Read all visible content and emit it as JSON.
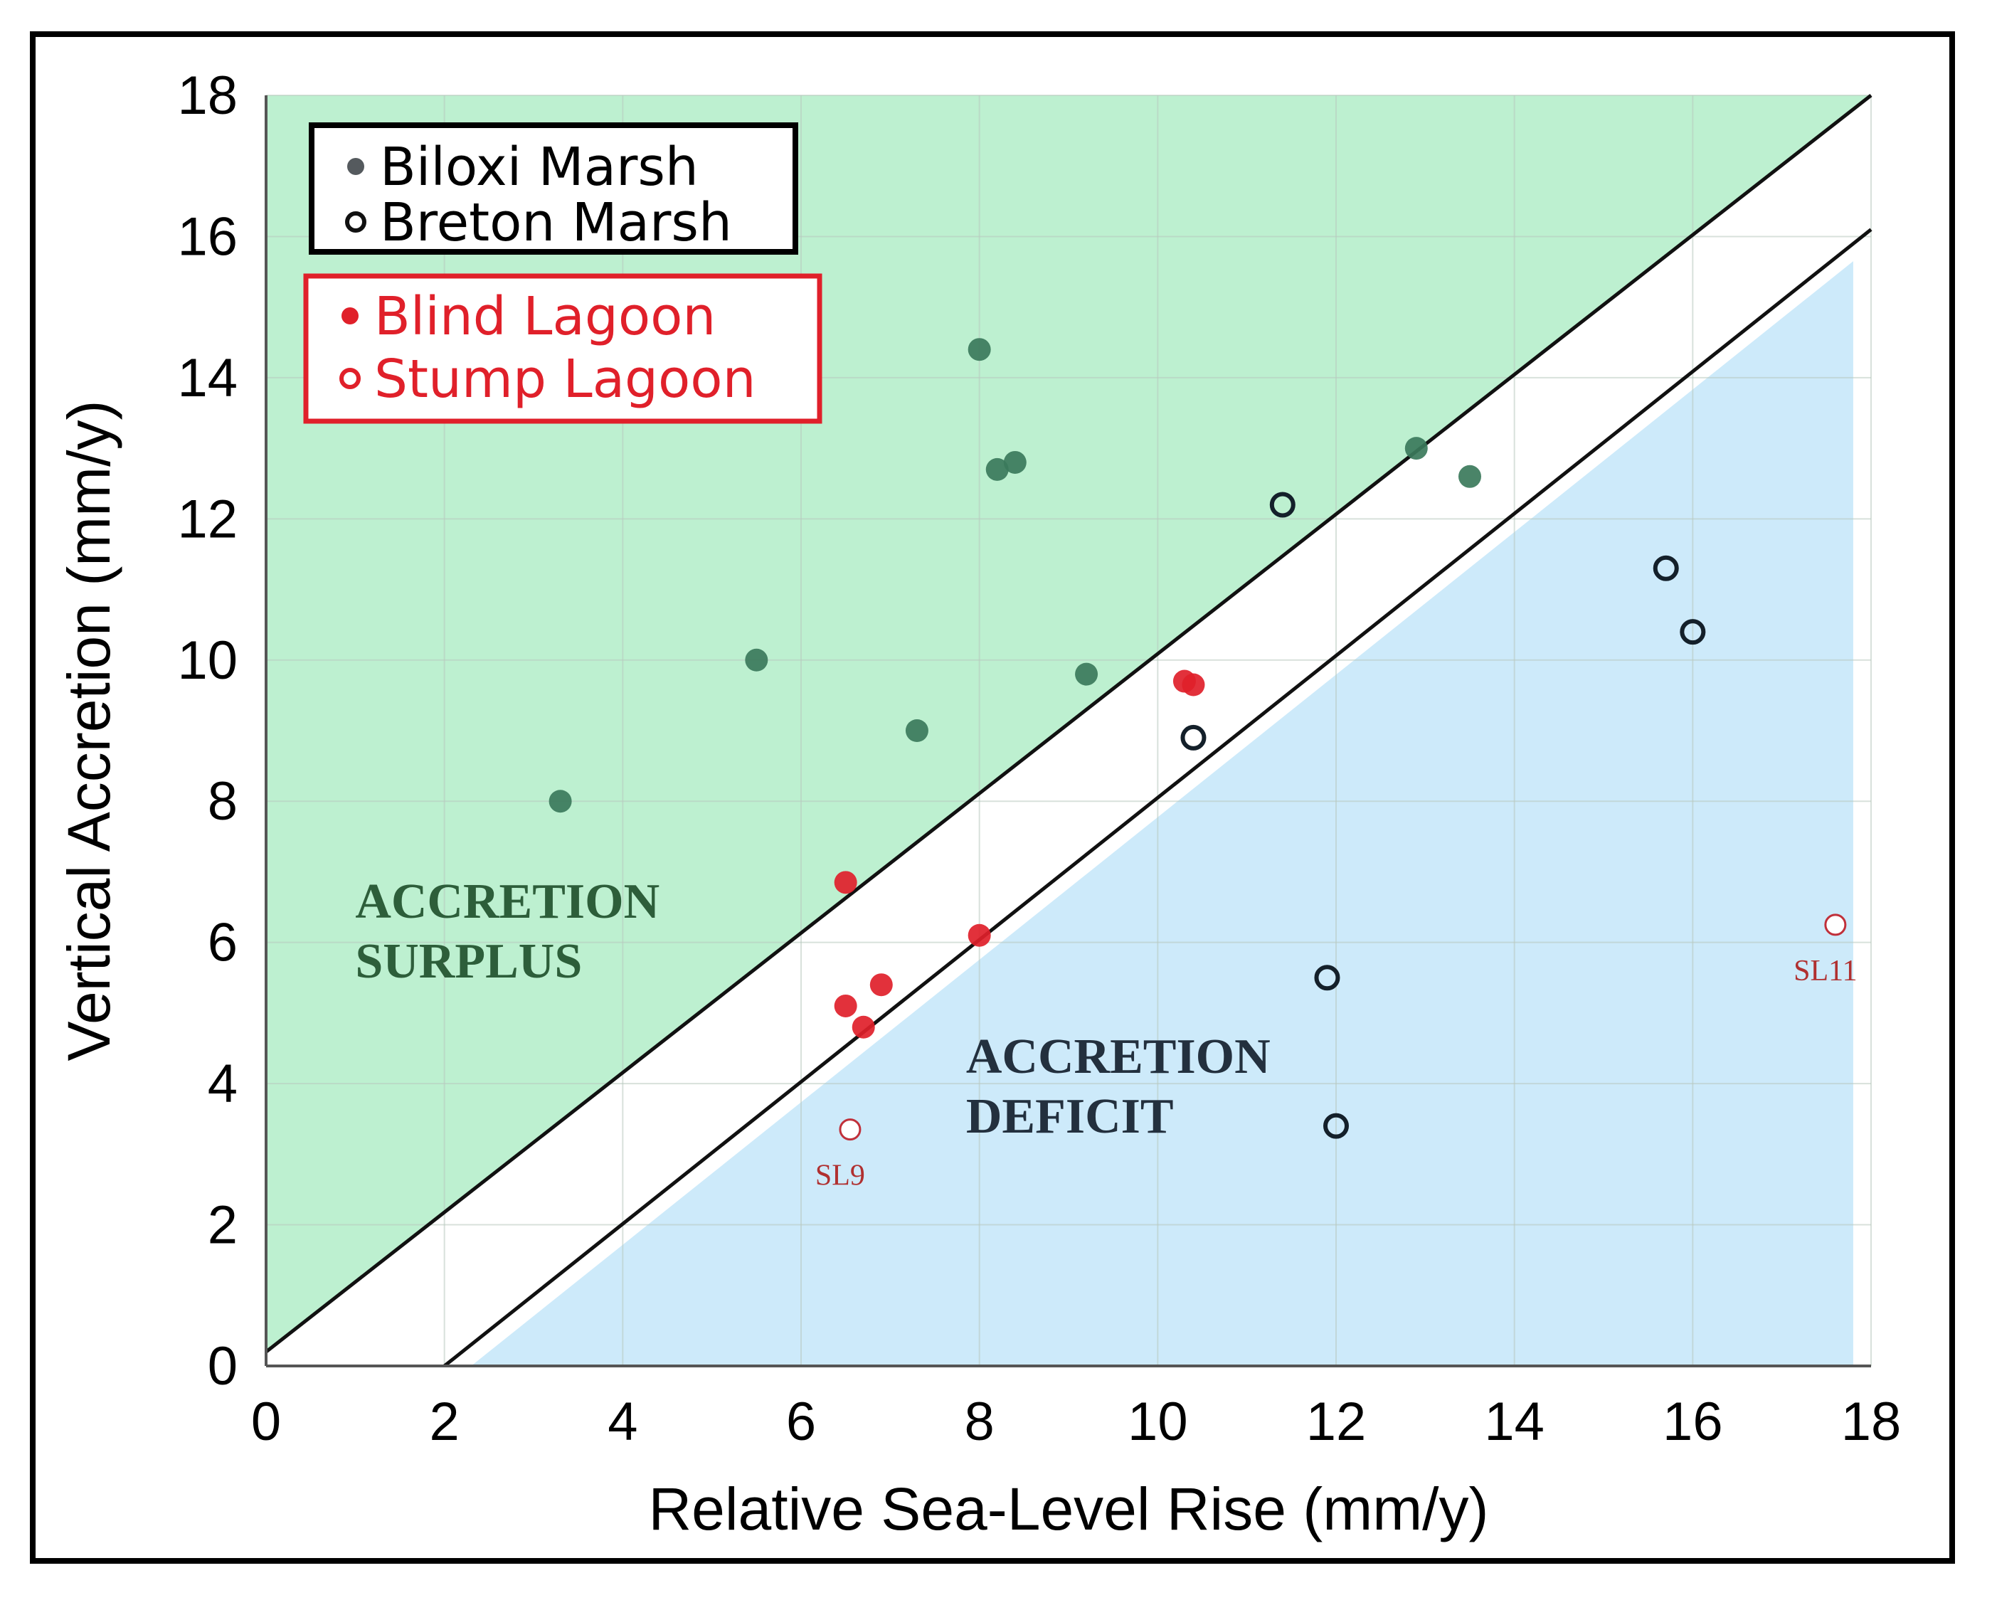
{
  "chart_data": {
    "type": "scatter",
    "xlabel": "Relative Sea-Level Rise (mm/y)",
    "ylabel": "Vertical Accretion (mm/y)",
    "xlim": [
      0,
      18
    ],
    "ylim": [
      0,
      18
    ],
    "xticks": [
      "0",
      "2",
      "4",
      "6",
      "8",
      "10",
      "12",
      "14",
      "16",
      "18"
    ],
    "yticks": [
      "0",
      "2",
      "4",
      "6",
      "8",
      "10",
      "12",
      "14",
      "16",
      "18"
    ],
    "grid": true,
    "legend_position": "top-left",
    "legend_groups": [
      {
        "entries": [
          "Biloxi Marsh",
          "Breton Marsh"
        ],
        "text_color": "#000000",
        "border_color": "#000000"
      },
      {
        "entries": [
          "Blind Lagoon",
          "Stump Lagoon"
        ],
        "text_color": "#e0202a",
        "border_color": "#e0202a"
      }
    ],
    "regions": [
      {
        "label_lines": [
          "ACCRETION",
          "SURPLUS"
        ],
        "color": "#bdf0d0",
        "text_color": "#2d5e3a"
      },
      {
        "label_lines": [
          "ACCRETION",
          "DEFICIT"
        ],
        "color": "#cdeafa",
        "text_color": "#23303e"
      }
    ],
    "reference_lines": [
      {
        "name": "surplus-boundary",
        "x": [
          0,
          18
        ],
        "y": [
          0.2,
          18
        ]
      },
      {
        "name": "deficit-boundary",
        "x": [
          2,
          18
        ],
        "y": [
          0,
          16.1
        ]
      }
    ],
    "series": [
      {
        "name": "Biloxi Marsh",
        "marker": "filled",
        "color": "#3b7a5b",
        "points": [
          [
            3.3,
            8.0
          ],
          [
            5.5,
            10.0
          ],
          [
            7.3,
            9.0
          ],
          [
            8.0,
            14.4
          ],
          [
            8.2,
            12.7
          ],
          [
            8.4,
            12.8
          ],
          [
            9.2,
            9.8
          ],
          [
            12.9,
            13.0
          ],
          [
            13.5,
            12.6
          ]
        ]
      },
      {
        "name": "Breton Marsh",
        "marker": "open",
        "color": "#14202a",
        "points": [
          [
            10.4,
            8.9
          ],
          [
            11.4,
            12.2
          ],
          [
            11.9,
            5.5
          ],
          [
            12.0,
            3.4
          ],
          [
            15.7,
            11.3
          ],
          [
            16.0,
            10.4
          ]
        ]
      },
      {
        "name": "Blind Lagoon",
        "marker": "filled",
        "color": "#e0202a",
        "points": [
          [
            6.5,
            6.85
          ],
          [
            6.5,
            5.1
          ],
          [
            6.7,
            4.8
          ],
          [
            6.9,
            5.4
          ],
          [
            8.0,
            6.1
          ],
          [
            10.3,
            9.7
          ],
          [
            10.4,
            9.65
          ]
        ]
      },
      {
        "name": "Stump Lagoon",
        "marker": "open-thin",
        "color": "#c0303a",
        "points": [
          {
            "x": 6.55,
            "y": 3.35,
            "label": "SL9"
          },
          {
            "x": 17.6,
            "y": 6.25,
            "label": "SL11"
          }
        ]
      }
    ]
  }
}
